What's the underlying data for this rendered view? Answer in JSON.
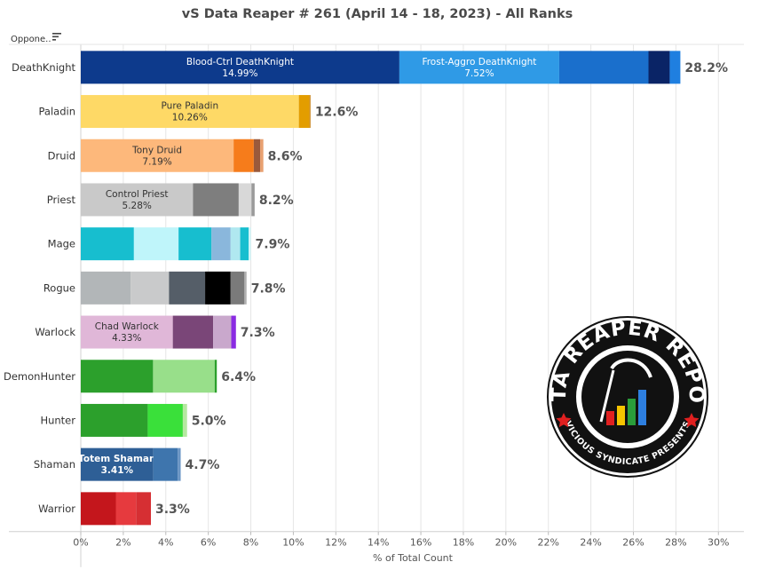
{
  "header": {
    "title": "vS Data Reaper # 261 (April 14 - 18, 2023) - All Ranks",
    "filter_label": "Oppone.."
  },
  "chart_data": {
    "type": "bar",
    "orientation": "horizontal",
    "stacked": true,
    "title": "vS Data Reaper # 261 (April 14 - 18, 2023) - All Ranks",
    "xlabel": "% of Total Count",
    "ylabel": "",
    "xlim": [
      0,
      30
    ],
    "xticks": [
      "0%",
      "2%",
      "4%",
      "6%",
      "8%",
      "10%",
      "12%",
      "14%",
      "16%",
      "18%",
      "20%",
      "22%",
      "24%",
      "26%",
      "28%",
      "30%"
    ],
    "grid": true,
    "categories": [
      {
        "name": "DeathKnight",
        "total": "28.2%",
        "segments": [
          {
            "value": 14.99,
            "color": "#0d3a8c",
            "label": "Blood-Ctrl DeathKnight",
            "pct": "14.99%",
            "text_color": "#ffffff"
          },
          {
            "value": 7.52,
            "color": "#2f9ae6",
            "label": "Frost-Aggro DeathKnight",
            "pct": "7.52%",
            "text_color": "#ffffff"
          },
          {
            "value": 4.2,
            "color": "#1a6fcc"
          },
          {
            "value": 1.0,
            "color": "#0a2466"
          },
          {
            "value": 0.5,
            "color": "#1f7fe0"
          }
        ]
      },
      {
        "name": "Paladin",
        "total": "12.6%",
        "segments": [
          {
            "value": 10.26,
            "color": "#fed966",
            "label": "Pure Paladin",
            "pct": "10.26%",
            "text_color": "#333333"
          },
          {
            "value": 0.5,
            "color": "#e39d00"
          },
          {
            "value": 0.05,
            "color": "#c8841b"
          }
        ]
      },
      {
        "name": "Druid",
        "total": "8.6%",
        "segments": [
          {
            "value": 7.19,
            "color": "#fdb87b",
            "label": "Tony Druid",
            "pct": "7.19%",
            "text_color": "#333333"
          },
          {
            "value": 0.95,
            "color": "#f67c1b"
          },
          {
            "value": 0.3,
            "color": "#9a5a3c"
          },
          {
            "value": 0.15,
            "color": "#e8a070"
          }
        ]
      },
      {
        "name": "Priest",
        "total": "8.2%",
        "segments": [
          {
            "value": 5.28,
            "color": "#c9c9c9",
            "label": "Control Priest",
            "pct": "5.28%",
            "text_color": "#333333"
          },
          {
            "value": 2.15,
            "color": "#7e7e7e"
          },
          {
            "value": 0.6,
            "color": "#d8d8d8"
          },
          {
            "value": 0.15,
            "color": "#9a9a9a"
          }
        ]
      },
      {
        "name": "Mage",
        "total": "7.9%",
        "segments": [
          {
            "value": 2.5,
            "color": "#17becf"
          },
          {
            "value": 2.1,
            "color": "#bff5fa"
          },
          {
            "value": 1.55,
            "color": "#17becf"
          },
          {
            "value": 0.9,
            "color": "#8ab7dc"
          },
          {
            "value": 0.45,
            "color": "#b0e8f0"
          },
          {
            "value": 0.4,
            "color": "#17becf"
          },
          {
            "value": 0.1,
            "color": "#d0f6fa"
          }
        ]
      },
      {
        "name": "Rogue",
        "total": "7.8%",
        "segments": [
          {
            "value": 2.35,
            "color": "#b2b6b8"
          },
          {
            "value": 1.8,
            "color": "#c9cacb"
          },
          {
            "value": 1.7,
            "color": "#555e68"
          },
          {
            "value": 1.2,
            "color": "#000000"
          },
          {
            "value": 0.65,
            "color": "#7a7a7a"
          },
          {
            "value": 0.1,
            "color": "#b0b0b0"
          }
        ]
      },
      {
        "name": "Warlock",
        "total": "7.3%",
        "segments": [
          {
            "value": 4.33,
            "color": "#e0b7d8",
            "label": "Chad Warlock",
            "pct": "4.33%",
            "text_color": "#333333"
          },
          {
            "value": 1.9,
            "color": "#7a4678"
          },
          {
            "value": 0.85,
            "color": "#c9a8cc"
          },
          {
            "value": 0.22,
            "color": "#8a2be2"
          }
        ]
      },
      {
        "name": "DemonHunter",
        "total": "6.4%",
        "segments": [
          {
            "value": 3.4,
            "color": "#2ca02c"
          },
          {
            "value": 2.9,
            "color": "#98df8a"
          },
          {
            "value": 0.1,
            "color": "#2ca02c"
          }
        ]
      },
      {
        "name": "Hunter",
        "total": "5.0%",
        "segments": [
          {
            "value": 3.15,
            "color": "#2ca02c"
          },
          {
            "value": 1.65,
            "color": "#3ae03a"
          },
          {
            "value": 0.2,
            "color": "#b5e8a0"
          }
        ]
      },
      {
        "name": "Shaman",
        "total": "4.7%",
        "segments": [
          {
            "value": 3.41,
            "color": "#2e5f96",
            "label": "Totem Shaman",
            "pct": "3.41%",
            "text_color": "#ffffff",
            "bold": true
          },
          {
            "value": 1.15,
            "color": "#3e75ad"
          },
          {
            "value": 0.14,
            "color": "#6a95c4"
          }
        ]
      },
      {
        "name": "Warrior",
        "total": "3.3%",
        "segments": [
          {
            "value": 1.65,
            "color": "#c4161c"
          },
          {
            "value": 0.95,
            "color": "#e63a3e"
          },
          {
            "value": 0.7,
            "color": "#d62f33"
          }
        ]
      }
    ]
  },
  "logo": {
    "title": "DATA REAPER REPORT",
    "subtitle": "VICIOUS SYNDICATE PRESENTS"
  }
}
